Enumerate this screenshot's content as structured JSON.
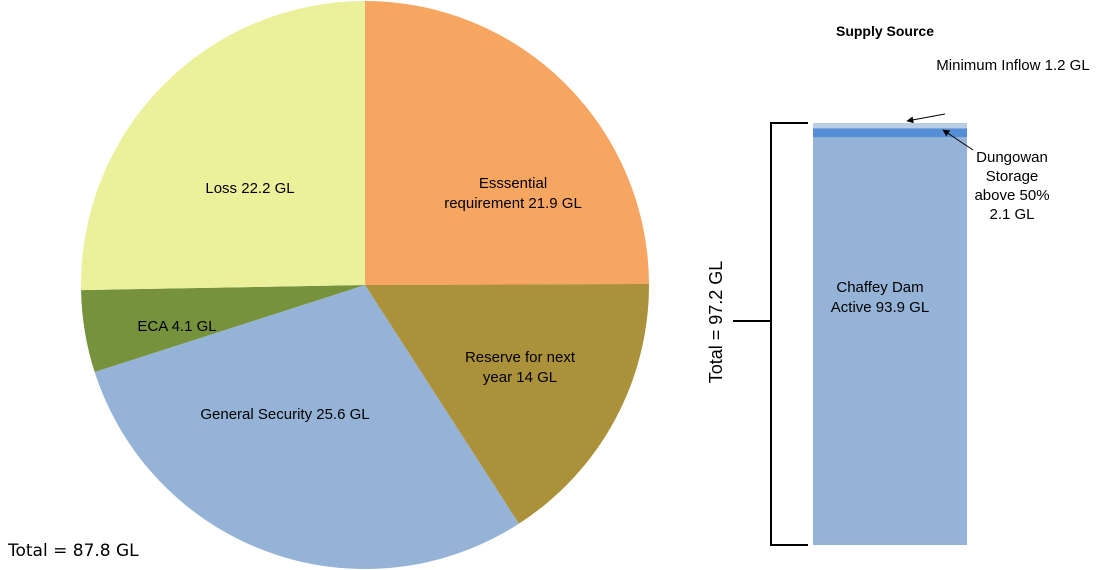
{
  "chart_data": [
    {
      "type": "pie",
      "total_label": "Total = 87.8 GL",
      "slices": [
        {
          "label_lines": [
            "Esssential",
            "requirement  21.9 GL"
          ],
          "value": 21.9,
          "color": "#F7A662"
        },
        {
          "label_lines": [
            "Reserve for next",
            "year 14 GL"
          ],
          "value": 14,
          "color": "#AB9139"
        },
        {
          "label_lines": [
            "General Security 25.6 GL"
          ],
          "value": 25.6,
          "color": "#95B3D7"
        },
        {
          "label_lines": [
            "ECA 4.1 GL"
          ],
          "value": 4.1,
          "color": "#76923C"
        },
        {
          "label_lines": [
            "Loss 22.2 GL"
          ],
          "value": 22.2,
          "color": "#EBF09A"
        }
      ]
    },
    {
      "type": "bar",
      "stacked": true,
      "title": "Supply Source",
      "total_label": "Total = 97.2 GL",
      "segments": [
        {
          "label_lines": [
            "Chaffey Dam",
            "Active 93.9 GL"
          ],
          "value": 93.9,
          "color": "#95B3D7"
        },
        {
          "label_lines": [
            "Dungowan",
            "Storage",
            "above 50%",
            "2.1 GL"
          ],
          "value": 2.1,
          "color": "#558ED5"
        },
        {
          "label_lines": [
            "Minimum  Inflow  1.2 GL"
          ],
          "value": 1.2,
          "color": "#B9CDE5"
        }
      ]
    }
  ]
}
